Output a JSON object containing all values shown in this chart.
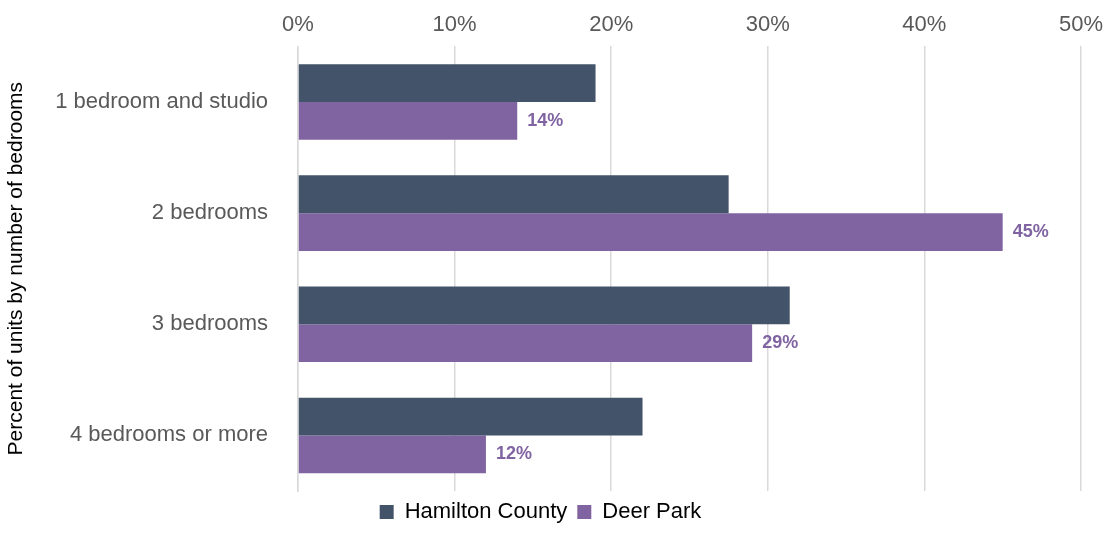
{
  "chart_data": {
    "type": "bar",
    "orientation": "horizontal",
    "ylabel": "Percent of units by number of bedrooms",
    "categories": [
      "1 bedroom and studio",
      "2 bedrooms",
      "3 bedrooms",
      "4 bedrooms or more"
    ],
    "series": [
      {
        "name": "Hamilton County",
        "color": "#435369",
        "values": [
          19,
          27.5,
          31.4,
          22
        ]
      },
      {
        "name": "Deer Park",
        "color": "#8064a2",
        "values": [
          14,
          45,
          29,
          12
        ],
        "value_labels": [
          "14%",
          "45%",
          "29%",
          "12%"
        ]
      }
    ],
    "xlim": [
      0,
      50
    ],
    "xticks": [
      {
        "value": 0,
        "label": "0%"
      },
      {
        "value": 10,
        "label": "10%"
      },
      {
        "value": 20,
        "label": "20%"
      },
      {
        "value": 30,
        "label": "30%"
      },
      {
        "value": 40,
        "label": "40%"
      },
      {
        "value": 50,
        "label": "50%"
      }
    ],
    "grid": "x",
    "legend": "bottom"
  }
}
